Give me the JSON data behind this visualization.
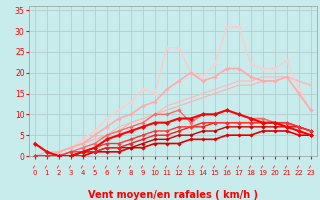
{
  "x": [
    0,
    1,
    2,
    3,
    4,
    5,
    6,
    7,
    8,
    9,
    10,
    11,
    12,
    13,
    14,
    15,
    16,
    17,
    18,
    19,
    20,
    21,
    22,
    23
  ],
  "lines": [
    {
      "y": [
        0,
        0,
        0,
        0,
        0,
        1,
        1,
        1,
        2,
        2,
        3,
        3,
        3,
        4,
        4,
        4,
        5,
        5,
        5,
        6,
        6,
        6,
        5,
        5
      ],
      "color": "#dd0000",
      "linewidth": 1.2,
      "marker": "D",
      "markersize": 1.8,
      "zorder": 5
    },
    {
      "y": [
        0,
        0,
        0,
        0,
        1,
        1,
        2,
        2,
        2,
        3,
        4,
        4,
        5,
        5,
        6,
        6,
        7,
        7,
        7,
        7,
        7,
        7,
        7,
        6
      ],
      "color": "#cc0000",
      "linewidth": 1.0,
      "marker": "D",
      "markersize": 1.8,
      "zorder": 5
    },
    {
      "y": [
        0,
        0,
        0,
        0,
        1,
        1,
        2,
        2,
        3,
        4,
        5,
        5,
        6,
        7,
        7,
        8,
        8,
        8,
        8,
        8,
        8,
        8,
        7,
        6
      ],
      "color": "#ee2222",
      "linewidth": 1.0,
      "marker": "D",
      "markersize": 1.8,
      "zorder": 5
    },
    {
      "y": [
        0,
        0,
        0,
        1,
        1,
        2,
        3,
        3,
        4,
        5,
        6,
        6,
        7,
        7,
        8,
        8,
        8,
        8,
        8,
        8,
        8,
        8,
        7,
        6
      ],
      "color": "#ff3333",
      "linewidth": 1.0,
      "marker": "D",
      "markersize": 1.8,
      "zorder": 5
    },
    {
      "y": [
        3,
        1,
        0,
        0,
        1,
        2,
        4,
        5,
        6,
        7,
        8,
        8,
        9,
        9,
        10,
        10,
        11,
        10,
        9,
        8,
        8,
        7,
        6,
        5
      ],
      "color": "#ff0000",
      "linewidth": 1.5,
      "marker": "D",
      "markersize": 2.2,
      "zorder": 6
    },
    {
      "y": [
        0,
        0,
        0,
        1,
        2,
        3,
        5,
        6,
        7,
        8,
        10,
        10,
        11,
        8,
        10,
        10,
        11,
        10,
        9,
        9,
        8,
        8,
        7,
        6
      ],
      "color": "#ff6666",
      "linewidth": 1.0,
      "marker": "D",
      "markersize": 1.8,
      "zorder": 4
    },
    {
      "y": [
        0,
        0,
        1,
        2,
        3,
        5,
        7,
        9,
        10,
        12,
        13,
        16,
        18,
        20,
        18,
        19,
        21,
        21,
        19,
        18,
        18,
        19,
        15,
        11
      ],
      "color": "#ffaaaa",
      "linewidth": 1.2,
      "marker": "D",
      "markersize": 1.8,
      "zorder": 3
    },
    {
      "y": [
        0,
        0,
        1,
        2,
        4,
        6,
        9,
        11,
        13,
        16,
        15,
        26,
        26,
        20,
        19,
        22,
        31,
        31,
        22,
        21,
        21,
        23,
        16,
        11
      ],
      "color": "#ffcccc",
      "linewidth": 1.0,
      "marker": "D",
      "markersize": 1.8,
      "zorder": 2
    },
    {
      "y": [
        0,
        1,
        1,
        2,
        3,
        4,
        5,
        6,
        8,
        9,
        10,
        11,
        12,
        13,
        14,
        15,
        16,
        17,
        17,
        18,
        18,
        19,
        18,
        17
      ],
      "color": "#ffb0b0",
      "linewidth": 0.8,
      "marker": null,
      "markersize": 0,
      "zorder": 1
    },
    {
      "y": [
        0,
        0,
        1,
        2,
        3,
        4,
        5,
        7,
        8,
        9,
        10,
        12,
        13,
        14,
        15,
        16,
        17,
        18,
        18,
        19,
        19,
        19,
        18,
        17
      ],
      "color": "#ffb8b8",
      "linewidth": 0.8,
      "marker": null,
      "markersize": 0,
      "zorder": 1
    }
  ],
  "xlabel": "Vent moyen/en rafales ( km/h )",
  "xlim": [
    -0.5,
    23.5
  ],
  "ylim": [
    0,
    36
  ],
  "yticks": [
    0,
    5,
    10,
    15,
    20,
    25,
    30,
    35
  ],
  "xticks": [
    0,
    1,
    2,
    3,
    4,
    5,
    6,
    7,
    8,
    9,
    10,
    11,
    12,
    13,
    14,
    15,
    16,
    17,
    18,
    19,
    20,
    21,
    22,
    23
  ],
  "bg_color": "#c8ecec",
  "grid_color": "#b0c8c8",
  "label_color": "#ff0000",
  "tick_color": "#ff0000",
  "xlabel_fontsize": 7,
  "arrow_color": "#ff4444"
}
